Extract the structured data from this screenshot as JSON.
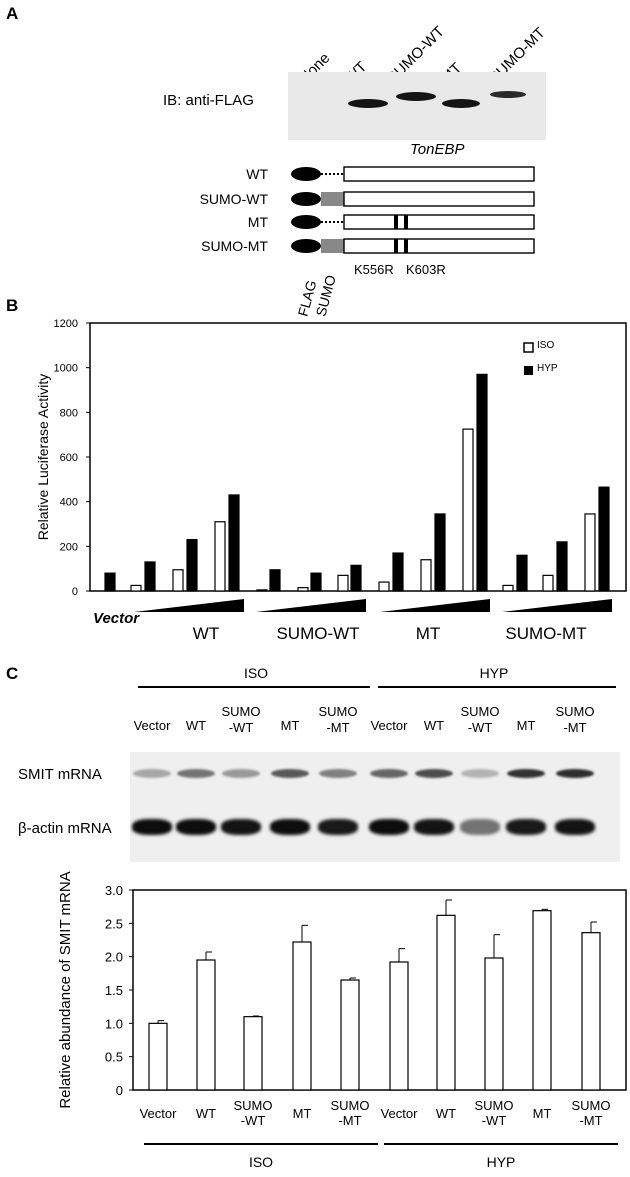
{
  "panel_a": {
    "letter": "A",
    "lanes": [
      "None",
      "WT",
      "SUMO-WT",
      "MT",
      "SUMO-MT"
    ],
    "ib_label": "IB: anti-FLAG",
    "protein_label": "TonEBP",
    "constructs": [
      "WT",
      "SUMO-WT",
      "MT",
      "SUMO-MT"
    ],
    "domain_labels": [
      "FLAG",
      "SUMO"
    ],
    "mutation_labels": [
      "K556R",
      "K603R"
    ]
  },
  "panel_b": {
    "letter": "B",
    "legend": [
      "ISO",
      "HYP"
    ],
    "vector_label": "Vector",
    "group_labels": [
      "WT",
      "SUMO-WT",
      "MT",
      "SUMO-MT"
    ]
  },
  "panel_c": {
    "letter": "C",
    "top_conditions": [
      "ISO",
      "HYP"
    ],
    "lanes": [
      "Vector",
      "WT",
      "SUMO\n-WT",
      "MT",
      "SUMO\n-MT",
      "Vector",
      "WT",
      "SUMO\n-WT",
      "MT",
      "SUMO\n-MT"
    ],
    "row_labels": [
      "SMIT mRNA",
      "β-actin mRNA"
    ],
    "bottom_conditions": [
      "ISO",
      "HYP"
    ]
  },
  "chart_data": [
    {
      "type": "bar",
      "ylabel": "Relative Luciferase Activity",
      "ylim": [
        0,
        1200
      ],
      "yticks": [
        0,
        200,
        400,
        600,
        800,
        1000,
        1200
      ],
      "categories": [
        "Vector",
        "WT-1",
        "WT-2",
        "WT-3",
        "SUMO-WT-1",
        "SUMO-WT-2",
        "SUMO-WT-3",
        "MT-1",
        "MT-2",
        "MT-3",
        "SUMO-MT-1",
        "SUMO-MT-2",
        "SUMO-MT-3"
      ],
      "series": [
        {
          "name": "ISO",
          "color": "#ffffff",
          "values": [
            0,
            25,
            95,
            310,
            5,
            15,
            70,
            40,
            140,
            725,
            25,
            70,
            345
          ]
        },
        {
          "name": "HYP",
          "color": "#000000",
          "values": [
            80,
            130,
            230,
            430,
            95,
            80,
            115,
            170,
            345,
            970,
            160,
            220,
            465
          ]
        }
      ],
      "legend_position": "top-right"
    },
    {
      "type": "bar",
      "ylabel": "Relative abundance of SMIT mRNA",
      "ylim": [
        0,
        3.0
      ],
      "yticks": [
        "0",
        "0.5",
        "1.0",
        "1.5",
        "2.0",
        "2.5",
        "3.0"
      ],
      "categories": [
        "Vector",
        "WT",
        "SUMO\n-WT",
        "MT",
        "SUMO\n-MT",
        "Vector",
        "WT",
        "SUMO\n-WT",
        "MT",
        "SUMO\n-MT"
      ],
      "values": [
        1.0,
        1.95,
        1.1,
        2.22,
        1.65,
        1.92,
        2.62,
        1.98,
        2.69,
        2.36
      ],
      "errors": [
        0.04,
        0.12,
        0.01,
        0.25,
        0.03,
        0.2,
        0.23,
        0.35,
        0.02,
        0.16
      ],
      "group_labels": [
        "ISO",
        "HYP"
      ]
    }
  ]
}
